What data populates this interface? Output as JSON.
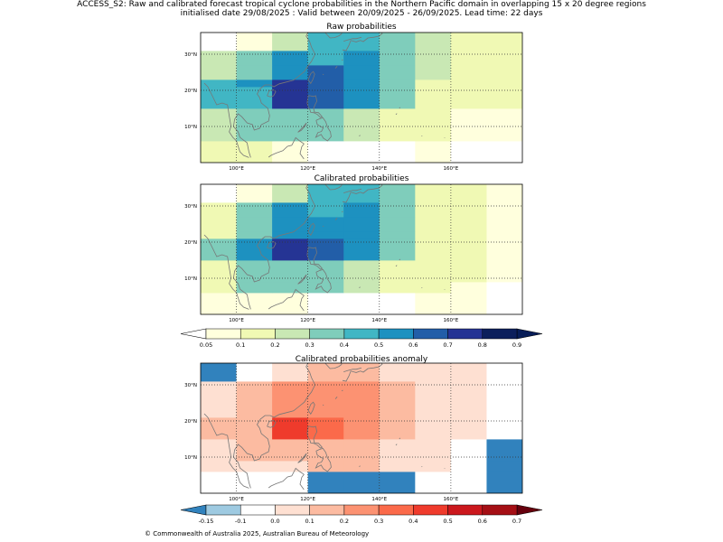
{
  "header": {
    "line1": "ACCESS_S2: Raw and calibrated forecast tropical cyclone probabilities in the Northern Pacific domain in overlapping 15 x 20 degree regions",
    "line2": "initialised date 29/08/2025 :  Valid between 20/09/2025 - 26/09/2025. Lead time: 22 days"
  },
  "footer": {
    "copyright": "© Commonwealth of Australia 2025, Australian Bureau of Meteorology"
  },
  "colors": {
    "coastline": "#777777",
    "frame": "#000000",
    "prob_levels": [
      "#ffffdd",
      "#f0f9b4",
      "#c9e8b4",
      "#7fcdbb",
      "#41b6c4",
      "#1d91c0",
      "#225ea8",
      "#253494",
      "#0c1f5c"
    ],
    "prob_under": "#ffffff",
    "prob_over": "#081d58",
    "anom_levels": [
      "#9ecae1",
      "#ffffff",
      "#fee0d2",
      "#fcbba1",
      "#fc9272",
      "#fb6a4a",
      "#ef3b2c",
      "#cb181d",
      "#a50f15"
    ],
    "anom_under": "#3182bd",
    "anom_over": "#67000d"
  },
  "chart_data": [
    {
      "type": "heatmap",
      "id": "raw",
      "title": "Raw probabilities",
      "xlim": [
        90,
        180
      ],
      "ylim": [
        0,
        36
      ],
      "x_edges": [
        90,
        100,
        110,
        120,
        130,
        140,
        150,
        160,
        170,
        180
      ],
      "y_edges": [
        0,
        6,
        9,
        15,
        21,
        23,
        27,
        31,
        36
      ],
      "x_ticks": [
        {
          "value": 100,
          "label": "100°E"
        },
        {
          "value": 120,
          "label": "120°E"
        },
        {
          "value": 140,
          "label": "140°E"
        },
        {
          "value": 160,
          "label": "160°E"
        }
      ],
      "y_ticks": [
        {
          "value": 10,
          "label": "10°N"
        },
        {
          "value": 20,
          "label": "20°N"
        },
        {
          "value": 30,
          "label": "30°N"
        }
      ],
      "grid": true,
      "rows": [
        [
          0.15,
          0.15,
          0.05,
          0.0,
          0.0,
          0.0,
          0.05,
          0.0,
          0.0
        ],
        [
          0.25,
          0.35,
          0.35,
          0.35,
          0.25,
          0.15,
          0.15,
          0.05,
          0.05
        ],
        [
          0.25,
          0.35,
          0.35,
          0.35,
          0.25,
          0.15,
          0.15,
          0.05,
          0.05
        ],
        [
          0.45,
          0.45,
          0.75,
          0.65,
          0.55,
          0.35,
          0.15,
          0.15,
          0.15
        ],
        [
          0.45,
          0.55,
          0.75,
          0.65,
          0.55,
          0.35,
          0.15,
          0.15,
          0.15
        ],
        [
          0.25,
          0.35,
          0.55,
          0.65,
          0.55,
          0.35,
          0.25,
          0.15,
          0.15
        ],
        [
          0.25,
          0.35,
          0.55,
          0.45,
          0.55,
          0.35,
          0.25,
          0.15,
          0.15
        ],
        [
          0.0,
          0.05,
          0.25,
          0.45,
          0.45,
          0.35,
          0.25,
          0.15,
          0.15
        ]
      ]
    },
    {
      "type": "heatmap",
      "id": "calibrated",
      "title": "Calibrated probabilities",
      "xlim": [
        90,
        180
      ],
      "ylim": [
        0,
        36
      ],
      "x_edges": [
        90,
        100,
        110,
        120,
        130,
        140,
        150,
        160,
        170,
        180
      ],
      "y_edges": [
        0,
        6,
        9,
        15,
        21,
        23,
        27,
        31,
        36
      ],
      "x_ticks": [
        {
          "value": 100,
          "label": "100°E"
        },
        {
          "value": 120,
          "label": "120°E"
        },
        {
          "value": 140,
          "label": "140°E"
        },
        {
          "value": 160,
          "label": "160°E"
        }
      ],
      "y_ticks": [
        {
          "value": 10,
          "label": "10°N"
        },
        {
          "value": 20,
          "label": "20°N"
        },
        {
          "value": 30,
          "label": "30°N"
        }
      ],
      "grid": true,
      "rows": [
        [
          0.05,
          0.05,
          0.05,
          0.0,
          0.0,
          0.0,
          0.05,
          0.05,
          0.0
        ],
        [
          0.15,
          0.35,
          0.35,
          0.35,
          0.25,
          0.15,
          0.15,
          0.05,
          0.0
        ],
        [
          0.15,
          0.35,
          0.35,
          0.35,
          0.25,
          0.15,
          0.15,
          0.15,
          0.05
        ],
        [
          0.35,
          0.55,
          0.75,
          0.65,
          0.55,
          0.35,
          0.15,
          0.15,
          0.05
        ],
        [
          0.15,
          0.35,
          0.55,
          0.55,
          0.55,
          0.35,
          0.15,
          0.15,
          0.05
        ],
        [
          0.15,
          0.35,
          0.55,
          0.55,
          0.55,
          0.35,
          0.15,
          0.15,
          0.05
        ],
        [
          0.15,
          0.35,
          0.55,
          0.45,
          0.55,
          0.35,
          0.15,
          0.15,
          0.05
        ],
        [
          0.0,
          0.05,
          0.25,
          0.45,
          0.45,
          0.35,
          0.15,
          0.15,
          0.05
        ]
      ]
    },
    {
      "type": "heatmap",
      "id": "anomaly",
      "title": "Calibrated probabilities anomaly",
      "xlim": [
        90,
        180
      ],
      "ylim": [
        0,
        36
      ],
      "x_edges": [
        90,
        100,
        110,
        120,
        130,
        140,
        150,
        160,
        170,
        180
      ],
      "y_edges": [
        0,
        6,
        9,
        15,
        21,
        23,
        27,
        31,
        36
      ],
      "x_ticks": [
        {
          "value": 100,
          "label": "100°E"
        },
        {
          "value": 120,
          "label": "120°E"
        },
        {
          "value": 140,
          "label": "140°E"
        },
        {
          "value": 160,
          "label": "160°E"
        }
      ],
      "y_ticks": [
        {
          "value": 10,
          "label": "10°N"
        },
        {
          "value": 20,
          "label": "20°N"
        },
        {
          "value": 30,
          "label": "30°N"
        }
      ],
      "grid": true,
      "rows": [
        [
          -0.05,
          -0.05,
          -0.05,
          -0.2,
          -0.2,
          -0.2,
          -0.05,
          -0.05,
          -0.2
        ],
        [
          0.0,
          0.0,
          0.05,
          0.15,
          0.15,
          0.05,
          0.0,
          -0.05,
          -0.2
        ],
        [
          0.0,
          0.15,
          0.15,
          0.15,
          0.15,
          0.05,
          0.0,
          -0.05,
          -0.2
        ],
        [
          0.15,
          0.15,
          0.45,
          0.35,
          0.25,
          0.15,
          0.0,
          0.0,
          -0.05
        ],
        [
          0.0,
          0.15,
          0.25,
          0.25,
          0.25,
          0.15,
          0.0,
          0.0,
          -0.05
        ],
        [
          0.0,
          0.15,
          0.25,
          0.25,
          0.25,
          0.15,
          0.0,
          0.0,
          -0.05
        ],
        [
          0.0,
          0.15,
          0.25,
          0.25,
          0.25,
          0.15,
          0.05,
          0.0,
          -0.05
        ],
        [
          -0.2,
          -0.05,
          0.05,
          0.15,
          0.15,
          0.05,
          0.05,
          0.0,
          -0.05
        ]
      ]
    }
  ],
  "colorbars": [
    {
      "id": "prob",
      "boundaries": [
        0.05,
        0.1,
        0.2,
        0.3,
        0.4,
        0.5,
        0.6,
        0.7,
        0.8,
        0.9
      ],
      "tick_labels": [
        "0.05",
        "0.1",
        "0.2",
        "0.3",
        "0.4",
        "0.5",
        "0.6",
        "0.7",
        "0.8",
        "0.9"
      ],
      "extend": "both"
    },
    {
      "id": "anom",
      "boundaries": [
        -0.15,
        -0.1,
        0.0,
        0.1,
        0.2,
        0.3,
        0.4,
        0.5,
        0.6,
        0.7
      ],
      "tick_labels": [
        "-0.15",
        "-0.1",
        "0.0",
        "0.1",
        "0.2",
        "0.3",
        "0.4",
        "0.5",
        "0.6",
        "0.7"
      ],
      "extend": "both"
    }
  ]
}
